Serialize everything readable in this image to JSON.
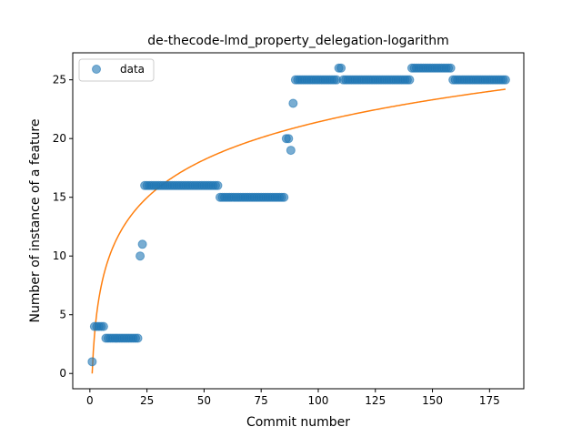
{
  "chart_data": {
    "type": "scatter",
    "title": "de-thecode-lmd_property_delegation-logarithm",
    "xlabel": "Commit number",
    "ylabel": "Number of instance of a feature",
    "xlim": [
      -7.5,
      190
    ],
    "ylim": [
      -1.3,
      27.3
    ],
    "xticks": [
      0,
      25,
      50,
      75,
      100,
      125,
      150,
      175
    ],
    "yticks": [
      0,
      5,
      10,
      15,
      20,
      25
    ],
    "legend": {
      "position": "top-left",
      "entries": [
        "data"
      ]
    },
    "colors": {
      "data": "#1f77b4",
      "fit": "#ff7f0e"
    },
    "grid": false,
    "series": [
      {
        "name": "data",
        "kind": "scatter",
        "points": [
          [
            1,
            1
          ],
          [
            2,
            4
          ],
          [
            3,
            4
          ],
          [
            4,
            4
          ],
          [
            5,
            4
          ],
          [
            6,
            4
          ],
          [
            7,
            3
          ],
          [
            8,
            3
          ],
          [
            9,
            3
          ],
          [
            10,
            3
          ],
          [
            11,
            3
          ],
          [
            12,
            3
          ],
          [
            13,
            3
          ],
          [
            14,
            3
          ],
          [
            15,
            3
          ],
          [
            16,
            3
          ],
          [
            17,
            3
          ],
          [
            18,
            3
          ],
          [
            19,
            3
          ],
          [
            20,
            3
          ],
          [
            21,
            3
          ],
          [
            22,
            10
          ],
          [
            23,
            11
          ],
          [
            24,
            16
          ],
          [
            25,
            16
          ],
          [
            26,
            16
          ],
          [
            27,
            16
          ],
          [
            28,
            16
          ],
          [
            29,
            16
          ],
          [
            30,
            16
          ],
          [
            31,
            16
          ],
          [
            32,
            16
          ],
          [
            33,
            16
          ],
          [
            34,
            16
          ],
          [
            35,
            16
          ],
          [
            36,
            16
          ],
          [
            37,
            16
          ],
          [
            38,
            16
          ],
          [
            39,
            16
          ],
          [
            40,
            16
          ],
          [
            41,
            16
          ],
          [
            42,
            16
          ],
          [
            43,
            16
          ],
          [
            44,
            16
          ],
          [
            45,
            16
          ],
          [
            46,
            16
          ],
          [
            47,
            16
          ],
          [
            48,
            16
          ],
          [
            49,
            16
          ],
          [
            50,
            16
          ],
          [
            51,
            16
          ],
          [
            52,
            16
          ],
          [
            53,
            16
          ],
          [
            54,
            16
          ],
          [
            55,
            16
          ],
          [
            56,
            16
          ],
          [
            57,
            15
          ],
          [
            58,
            15
          ],
          [
            59,
            15
          ],
          [
            60,
            15
          ],
          [
            61,
            15
          ],
          [
            62,
            15
          ],
          [
            63,
            15
          ],
          [
            64,
            15
          ],
          [
            65,
            15
          ],
          [
            66,
            15
          ],
          [
            67,
            15
          ],
          [
            68,
            15
          ],
          [
            69,
            15
          ],
          [
            70,
            15
          ],
          [
            71,
            15
          ],
          [
            72,
            15
          ],
          [
            73,
            15
          ],
          [
            74,
            15
          ],
          [
            75,
            15
          ],
          [
            76,
            15
          ],
          [
            77,
            15
          ],
          [
            78,
            15
          ],
          [
            79,
            15
          ],
          [
            80,
            15
          ],
          [
            81,
            15
          ],
          [
            82,
            15
          ],
          [
            83,
            15
          ],
          [
            84,
            15
          ],
          [
            85,
            15
          ],
          [
            86,
            20
          ],
          [
            87,
            20
          ],
          [
            88,
            19
          ],
          [
            89,
            23
          ],
          [
            90,
            25
          ],
          [
            91,
            25
          ],
          [
            92,
            25
          ],
          [
            93,
            25
          ],
          [
            94,
            25
          ],
          [
            95,
            25
          ],
          [
            96,
            25
          ],
          [
            97,
            25
          ],
          [
            98,
            25
          ],
          [
            99,
            25
          ],
          [
            100,
            25
          ],
          [
            101,
            25
          ],
          [
            102,
            25
          ],
          [
            103,
            25
          ],
          [
            104,
            25
          ],
          [
            105,
            25
          ],
          [
            106,
            25
          ],
          [
            107,
            25
          ],
          [
            108,
            25
          ],
          [
            109,
            26
          ],
          [
            110,
            26
          ],
          [
            111,
            25
          ],
          [
            112,
            25
          ],
          [
            113,
            25
          ],
          [
            114,
            25
          ],
          [
            115,
            25
          ],
          [
            116,
            25
          ],
          [
            117,
            25
          ],
          [
            118,
            25
          ],
          [
            119,
            25
          ],
          [
            120,
            25
          ],
          [
            121,
            25
          ],
          [
            122,
            25
          ],
          [
            123,
            25
          ],
          [
            124,
            25
          ],
          [
            125,
            25
          ],
          [
            126,
            25
          ],
          [
            127,
            25
          ],
          [
            128,
            25
          ],
          [
            129,
            25
          ],
          [
            130,
            25
          ],
          [
            131,
            25
          ],
          [
            132,
            25
          ],
          [
            133,
            25
          ],
          [
            134,
            25
          ],
          [
            135,
            25
          ],
          [
            136,
            25
          ],
          [
            137,
            25
          ],
          [
            138,
            25
          ],
          [
            139,
            25
          ],
          [
            140,
            25
          ],
          [
            141,
            26
          ],
          [
            142,
            26
          ],
          [
            143,
            26
          ],
          [
            144,
            26
          ],
          [
            145,
            26
          ],
          [
            146,
            26
          ],
          [
            147,
            26
          ],
          [
            148,
            26
          ],
          [
            149,
            26
          ],
          [
            150,
            26
          ],
          [
            151,
            26
          ],
          [
            152,
            26
          ],
          [
            153,
            26
          ],
          [
            154,
            26
          ],
          [
            155,
            26
          ],
          [
            156,
            26
          ],
          [
            157,
            26
          ],
          [
            158,
            26
          ],
          [
            159,
            25
          ],
          [
            160,
            25
          ],
          [
            161,
            25
          ],
          [
            162,
            25
          ],
          [
            163,
            25
          ],
          [
            164,
            25
          ],
          [
            165,
            25
          ],
          [
            166,
            25
          ],
          [
            167,
            25
          ],
          [
            168,
            25
          ],
          [
            169,
            25
          ],
          [
            170,
            25
          ],
          [
            171,
            25
          ],
          [
            172,
            25
          ],
          [
            173,
            25
          ],
          [
            174,
            25
          ],
          [
            175,
            25
          ],
          [
            176,
            25
          ],
          [
            177,
            25
          ],
          [
            178,
            25
          ],
          [
            179,
            25
          ],
          [
            180,
            25
          ],
          [
            181,
            25
          ],
          [
            182,
            25
          ]
        ]
      },
      {
        "kind": "line",
        "model": "logarithmic",
        "a": 0,
        "b": 4.65,
        "x_range": [
          1,
          182
        ]
      }
    ]
  }
}
